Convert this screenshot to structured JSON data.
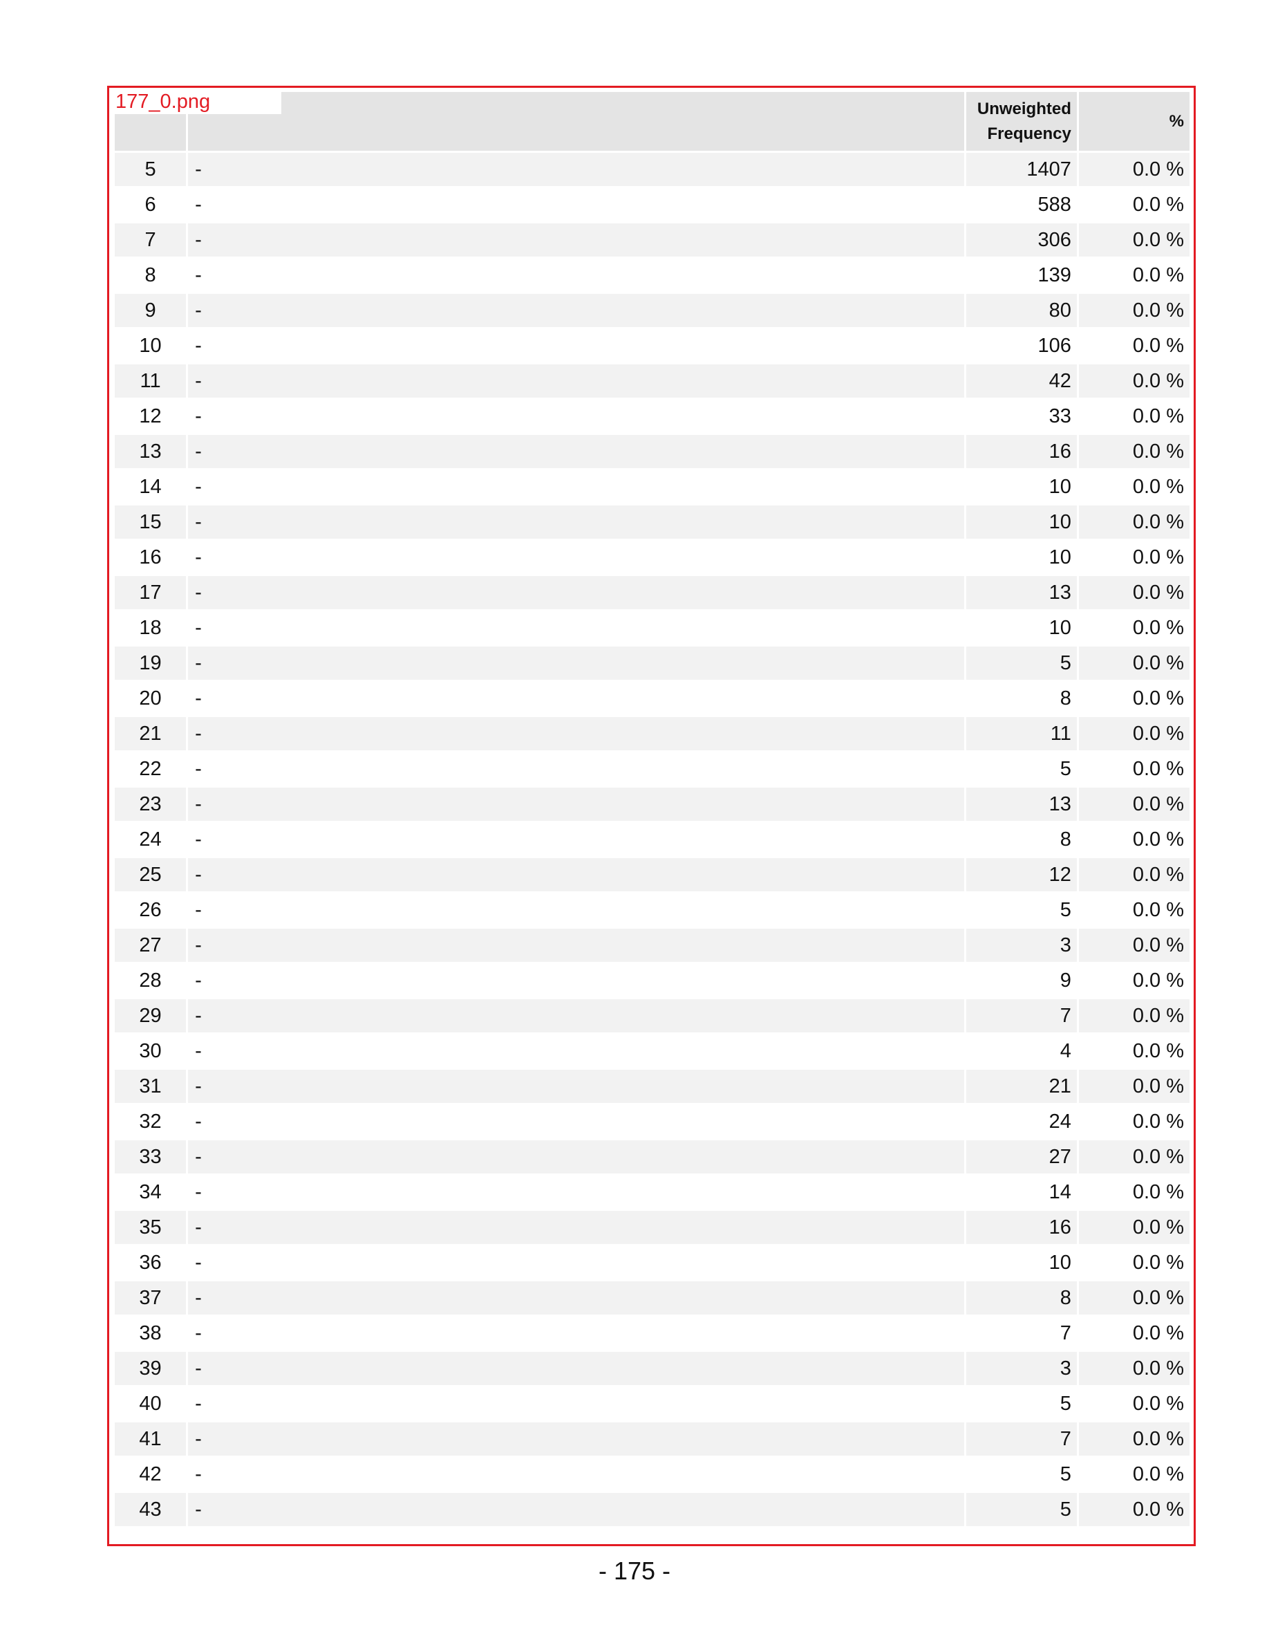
{
  "file_label": "177_0.png",
  "table": {
    "headers": {
      "code": "",
      "label": "",
      "freq": "Unweighted\nFrequency",
      "pct": "%"
    },
    "rows": [
      {
        "code": "5",
        "label": "-",
        "freq": "1407",
        "pct": "0.0 %"
      },
      {
        "code": "6",
        "label": "-",
        "freq": "588",
        "pct": "0.0 %"
      },
      {
        "code": "7",
        "label": "-",
        "freq": "306",
        "pct": "0.0 %"
      },
      {
        "code": "8",
        "label": "-",
        "freq": "139",
        "pct": "0.0 %"
      },
      {
        "code": "9",
        "label": "-",
        "freq": "80",
        "pct": "0.0 %"
      },
      {
        "code": "10",
        "label": "-",
        "freq": "106",
        "pct": "0.0 %"
      },
      {
        "code": "11",
        "label": "-",
        "freq": "42",
        "pct": "0.0 %"
      },
      {
        "code": "12",
        "label": "-",
        "freq": "33",
        "pct": "0.0 %"
      },
      {
        "code": "13",
        "label": "-",
        "freq": "16",
        "pct": "0.0 %"
      },
      {
        "code": "14",
        "label": "-",
        "freq": "10",
        "pct": "0.0 %"
      },
      {
        "code": "15",
        "label": "-",
        "freq": "10",
        "pct": "0.0 %"
      },
      {
        "code": "16",
        "label": "-",
        "freq": "10",
        "pct": "0.0 %"
      },
      {
        "code": "17",
        "label": "-",
        "freq": "13",
        "pct": "0.0 %"
      },
      {
        "code": "18",
        "label": "-",
        "freq": "10",
        "pct": "0.0 %"
      },
      {
        "code": "19",
        "label": "-",
        "freq": "5",
        "pct": "0.0 %"
      },
      {
        "code": "20",
        "label": "-",
        "freq": "8",
        "pct": "0.0 %"
      },
      {
        "code": "21",
        "label": "-",
        "freq": "11",
        "pct": "0.0 %"
      },
      {
        "code": "22",
        "label": "-",
        "freq": "5",
        "pct": "0.0 %"
      },
      {
        "code": "23",
        "label": "-",
        "freq": "13",
        "pct": "0.0 %"
      },
      {
        "code": "24",
        "label": "-",
        "freq": "8",
        "pct": "0.0 %"
      },
      {
        "code": "25",
        "label": "-",
        "freq": "12",
        "pct": "0.0 %"
      },
      {
        "code": "26",
        "label": "-",
        "freq": "5",
        "pct": "0.0 %"
      },
      {
        "code": "27",
        "label": "-",
        "freq": "3",
        "pct": "0.0 %"
      },
      {
        "code": "28",
        "label": "-",
        "freq": "9",
        "pct": "0.0 %"
      },
      {
        "code": "29",
        "label": "-",
        "freq": "7",
        "pct": "0.0 %"
      },
      {
        "code": "30",
        "label": "-",
        "freq": "4",
        "pct": "0.0 %"
      },
      {
        "code": "31",
        "label": "-",
        "freq": "21",
        "pct": "0.0 %"
      },
      {
        "code": "32",
        "label": "-",
        "freq": "24",
        "pct": "0.0 %"
      },
      {
        "code": "33",
        "label": "-",
        "freq": "27",
        "pct": "0.0 %"
      },
      {
        "code": "34",
        "label": "-",
        "freq": "14",
        "pct": "0.0 %"
      },
      {
        "code": "35",
        "label": "-",
        "freq": "16",
        "pct": "0.0 %"
      },
      {
        "code": "36",
        "label": "-",
        "freq": "10",
        "pct": "0.0 %"
      },
      {
        "code": "37",
        "label": "-",
        "freq": "8",
        "pct": "0.0 %"
      },
      {
        "code": "38",
        "label": "-",
        "freq": "7",
        "pct": "0.0 %"
      },
      {
        "code": "39",
        "label": "-",
        "freq": "3",
        "pct": "0.0 %"
      },
      {
        "code": "40",
        "label": "-",
        "freq": "5",
        "pct": "0.0 %"
      },
      {
        "code": "41",
        "label": "-",
        "freq": "7",
        "pct": "0.0 %"
      },
      {
        "code": "42",
        "label": "-",
        "freq": "5",
        "pct": "0.0 %"
      },
      {
        "code": "43",
        "label": "-",
        "freq": "5",
        "pct": "0.0 %"
      }
    ]
  },
  "page_number": "- 175 -",
  "colors": {
    "frame_border": "#e31b23",
    "header_bg": "#e4e4e4",
    "row_stripe": "#f2f2f2",
    "label_text": "#e31b23"
  }
}
